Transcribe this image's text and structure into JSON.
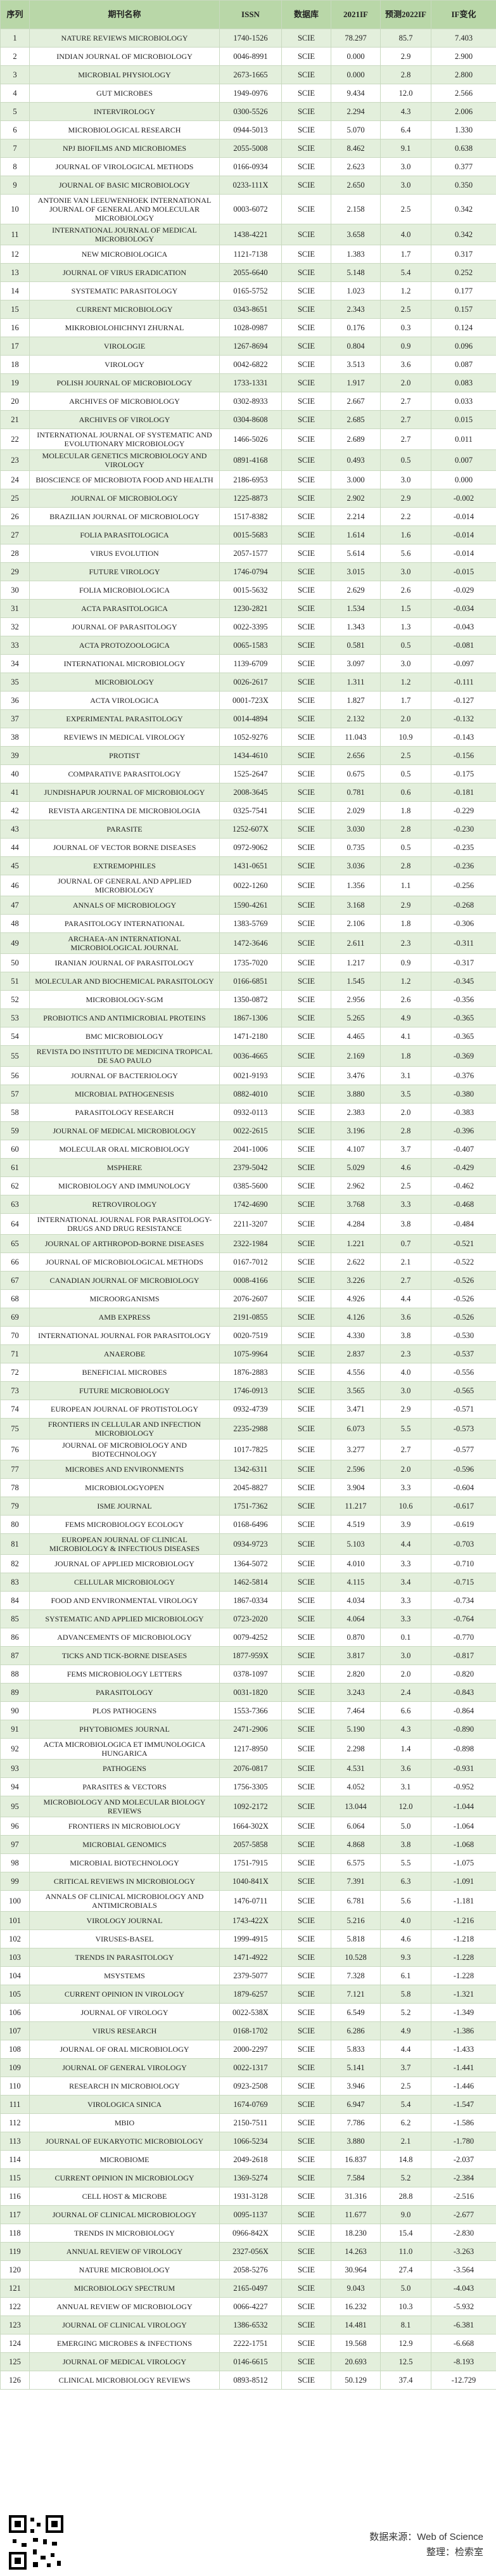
{
  "table": {
    "header": [
      "序列",
      "期刊名称",
      "ISSN",
      "数据库",
      "2021IF",
      "预测2022IF",
      "IF变化"
    ],
    "rows": [
      [
        "1",
        "NATURE REVIEWS MICROBIOLOGY",
        "1740-1526",
        "SCIE",
        "78.297",
        "85.7",
        "7.403"
      ],
      [
        "2",
        "INDIAN JOURNAL OF MICROBIOLOGY",
        "0046-8991",
        "SCIE",
        "0.000",
        "2.9",
        "2.900"
      ],
      [
        "3",
        "MICROBIAL PHYSIOLOGY",
        "2673-1665",
        "SCIE",
        "0.000",
        "2.8",
        "2.800"
      ],
      [
        "4",
        "GUT MICROBES",
        "1949-0976",
        "SCIE",
        "9.434",
        "12.0",
        "2.566"
      ],
      [
        "5",
        "INTERVIROLOGY",
        "0300-5526",
        "SCIE",
        "2.294",
        "4.3",
        "2.006"
      ],
      [
        "6",
        "MICROBIOLOGICAL RESEARCH",
        "0944-5013",
        "SCIE",
        "5.070",
        "6.4",
        "1.330"
      ],
      [
        "7",
        "NPJ BIOFILMS AND MICROBIOMES",
        "2055-5008",
        "SCIE",
        "8.462",
        "9.1",
        "0.638"
      ],
      [
        "8",
        "JOURNAL OF VIROLOGICAL METHODS",
        "0166-0934",
        "SCIE",
        "2.623",
        "3.0",
        "0.377"
      ],
      [
        "9",
        "JOURNAL OF BASIC MICROBIOLOGY",
        "0233-111X",
        "SCIE",
        "2.650",
        "3.0",
        "0.350"
      ],
      [
        "10",
        "ANTONIE VAN LEEUWENHOEK INTERNATIONAL JOURNAL OF GENERAL AND MOLECULAR MICROBIOLOGY",
        "0003-6072",
        "SCIE",
        "2.158",
        "2.5",
        "0.342"
      ],
      [
        "11",
        "INTERNATIONAL JOURNAL OF MEDICAL MICROBIOLOGY",
        "1438-4221",
        "SCIE",
        "3.658",
        "4.0",
        "0.342"
      ],
      [
        "12",
        "NEW MICROBIOLOGICA",
        "1121-7138",
        "SCIE",
        "1.383",
        "1.7",
        "0.317"
      ],
      [
        "13",
        "JOURNAL OF VIRUS ERADICATION",
        "2055-6640",
        "SCIE",
        "5.148",
        "5.4",
        "0.252"
      ],
      [
        "14",
        "SYSTEMATIC PARASITOLOGY",
        "0165-5752",
        "SCIE",
        "1.023",
        "1.2",
        "0.177"
      ],
      [
        "15",
        "CURRENT MICROBIOLOGY",
        "0343-8651",
        "SCIE",
        "2.343",
        "2.5",
        "0.157"
      ],
      [
        "16",
        "MIKROBIOLOHICHNYI ZHURNAL",
        "1028-0987",
        "SCIE",
        "0.176",
        "0.3",
        "0.124"
      ],
      [
        "17",
        "VIROLOGIE",
        "1267-8694",
        "SCIE",
        "0.804",
        "0.9",
        "0.096"
      ],
      [
        "18",
        "VIROLOGY",
        "0042-6822",
        "SCIE",
        "3.513",
        "3.6",
        "0.087"
      ],
      [
        "19",
        "POLISH JOURNAL OF MICROBIOLOGY",
        "1733-1331",
        "SCIE",
        "1.917",
        "2.0",
        "0.083"
      ],
      [
        "20",
        "ARCHIVES OF MICROBIOLOGY",
        "0302-8933",
        "SCIE",
        "2.667",
        "2.7",
        "0.033"
      ],
      [
        "21",
        "ARCHIVES OF VIROLOGY",
        "0304-8608",
        "SCIE",
        "2.685",
        "2.7",
        "0.015"
      ],
      [
        "22",
        "INTERNATIONAL JOURNAL OF SYSTEMATIC AND EVOLUTIONARY MICROBIOLOGY",
        "1466-5026",
        "SCIE",
        "2.689",
        "2.7",
        "0.011"
      ],
      [
        "23",
        "MOLECULAR GENETICS MICROBIOLOGY AND VIROLOGY",
        "0891-4168",
        "SCIE",
        "0.493",
        "0.5",
        "0.007"
      ],
      [
        "24",
        "BIOSCIENCE OF MICROBIOTA FOOD AND HEALTH",
        "2186-6953",
        "SCIE",
        "3.000",
        "3.0",
        "0.000"
      ],
      [
        "25",
        "JOURNAL OF MICROBIOLOGY",
        "1225-8873",
        "SCIE",
        "2.902",
        "2.9",
        "-0.002"
      ],
      [
        "26",
        "BRAZILIAN JOURNAL OF MICROBIOLOGY",
        "1517-8382",
        "SCIE",
        "2.214",
        "2.2",
        "-0.014"
      ],
      [
        "27",
        "FOLIA PARASITOLOGICA",
        "0015-5683",
        "SCIE",
        "1.614",
        "1.6",
        "-0.014"
      ],
      [
        "28",
        "VIRUS EVOLUTION",
        "2057-1577",
        "SCIE",
        "5.614",
        "5.6",
        "-0.014"
      ],
      [
        "29",
        "FUTURE VIROLOGY",
        "1746-0794",
        "SCIE",
        "3.015",
        "3.0",
        "-0.015"
      ],
      [
        "30",
        "FOLIA MICROBIOLOGICA",
        "0015-5632",
        "SCIE",
        "2.629",
        "2.6",
        "-0.029"
      ],
      [
        "31",
        "ACTA PARASITOLOGICA",
        "1230-2821",
        "SCIE",
        "1.534",
        "1.5",
        "-0.034"
      ],
      [
        "32",
        "JOURNAL OF PARASITOLOGY",
        "0022-3395",
        "SCIE",
        "1.343",
        "1.3",
        "-0.043"
      ],
      [
        "33",
        "ACTA PROTOZOOLOGICA",
        "0065-1583",
        "SCIE",
        "0.581",
        "0.5",
        "-0.081"
      ],
      [
        "34",
        "INTERNATIONAL MICROBIOLOGY",
        "1139-6709",
        "SCIE",
        "3.097",
        "3.0",
        "-0.097"
      ],
      [
        "35",
        "MICROBIOLOGY",
        "0026-2617",
        "SCIE",
        "1.311",
        "1.2",
        "-0.111"
      ],
      [
        "36",
        "ACTA VIROLOGICA",
        "0001-723X",
        "SCIE",
        "1.827",
        "1.7",
        "-0.127"
      ],
      [
        "37",
        "EXPERIMENTAL PARASITOLOGY",
        "0014-4894",
        "SCIE",
        "2.132",
        "2.0",
        "-0.132"
      ],
      [
        "38",
        "REVIEWS IN MEDICAL VIROLOGY",
        "1052-9276",
        "SCIE",
        "11.043",
        "10.9",
        "-0.143"
      ],
      [
        "39",
        "PROTIST",
        "1434-4610",
        "SCIE",
        "2.656",
        "2.5",
        "-0.156"
      ],
      [
        "40",
        "COMPARATIVE PARASITOLOGY",
        "1525-2647",
        "SCIE",
        "0.675",
        "0.5",
        "-0.175"
      ],
      [
        "41",
        "JUNDISHAPUR JOURNAL OF MICROBIOLOGY",
        "2008-3645",
        "SCIE",
        "0.781",
        "0.6",
        "-0.181"
      ],
      [
        "42",
        "REVISTA ARGENTINA DE MICROBIOLOGIA",
        "0325-7541",
        "SCIE",
        "2.029",
        "1.8",
        "-0.229"
      ],
      [
        "43",
        "PARASITE",
        "1252-607X",
        "SCIE",
        "3.030",
        "2.8",
        "-0.230"
      ],
      [
        "44",
        "JOURNAL OF VECTOR BORNE DISEASES",
        "0972-9062",
        "SCIE",
        "0.735",
        "0.5",
        "-0.235"
      ],
      [
        "45",
        "EXTREMOPHILES",
        "1431-0651",
        "SCIE",
        "3.036",
        "2.8",
        "-0.236"
      ],
      [
        "46",
        "JOURNAL OF GENERAL AND APPLIED MICROBIOLOGY",
        "0022-1260",
        "SCIE",
        "1.356",
        "1.1",
        "-0.256"
      ],
      [
        "47",
        "ANNALS OF MICROBIOLOGY",
        "1590-4261",
        "SCIE",
        "3.168",
        "2.9",
        "-0.268"
      ],
      [
        "48",
        "PARASITOLOGY INTERNATIONAL",
        "1383-5769",
        "SCIE",
        "2.106",
        "1.8",
        "-0.306"
      ],
      [
        "49",
        "ARCHAEA-AN INTERNATIONAL MICROBIOLOGICAL JOURNAL",
        "1472-3646",
        "SCIE",
        "2.611",
        "2.3",
        "-0.311"
      ],
      [
        "50",
        "IRANIAN JOURNAL OF PARASITOLOGY",
        "1735-7020",
        "SCIE",
        "1.217",
        "0.9",
        "-0.317"
      ],
      [
        "51",
        "MOLECULAR AND BIOCHEMICAL PARASITOLOGY",
        "0166-6851",
        "SCIE",
        "1.545",
        "1.2",
        "-0.345"
      ],
      [
        "52",
        "MICROBIOLOGY-SGM",
        "1350-0872",
        "SCIE",
        "2.956",
        "2.6",
        "-0.356"
      ],
      [
        "53",
        "PROBIOTICS AND ANTIMICROBIAL PROTEINS",
        "1867-1306",
        "SCIE",
        "5.265",
        "4.9",
        "-0.365"
      ],
      [
        "54",
        "BMC MICROBIOLOGY",
        "1471-2180",
        "SCIE",
        "4.465",
        "4.1",
        "-0.365"
      ],
      [
        "55",
        "REVISTA DO INSTITUTO DE MEDICINA TROPICAL DE SAO PAULO",
        "0036-4665",
        "SCIE",
        "2.169",
        "1.8",
        "-0.369"
      ],
      [
        "56",
        "JOURNAL OF BACTERIOLOGY",
        "0021-9193",
        "SCIE",
        "3.476",
        "3.1",
        "-0.376"
      ],
      [
        "57",
        "MICROBIAL PATHOGENESIS",
        "0882-4010",
        "SCIE",
        "3.880",
        "3.5",
        "-0.380"
      ],
      [
        "58",
        "PARASITOLOGY RESEARCH",
        "0932-0113",
        "SCIE",
        "2.383",
        "2.0",
        "-0.383"
      ],
      [
        "59",
        "JOURNAL OF MEDICAL MICROBIOLOGY",
        "0022-2615",
        "SCIE",
        "3.196",
        "2.8",
        "-0.396"
      ],
      [
        "60",
        "MOLECULAR ORAL MICROBIOLOGY",
        "2041-1006",
        "SCIE",
        "4.107",
        "3.7",
        "-0.407"
      ],
      [
        "61",
        "MSPHERE",
        "2379-5042",
        "SCIE",
        "5.029",
        "4.6",
        "-0.429"
      ],
      [
        "62",
        "MICROBIOLOGY AND IMMUNOLOGY",
        "0385-5600",
        "SCIE",
        "2.962",
        "2.5",
        "-0.462"
      ],
      [
        "63",
        "RETROVIROLOGY",
        "1742-4690",
        "SCIE",
        "3.768",
        "3.3",
        "-0.468"
      ],
      [
        "64",
        "INTERNATIONAL JOURNAL FOR PARASITOLOGY-DRUGS AND DRUG RESISTANCE",
        "2211-3207",
        "SCIE",
        "4.284",
        "3.8",
        "-0.484"
      ],
      [
        "65",
        "JOURNAL OF ARTHROPOD-BORNE DISEASES",
        "2322-1984",
        "SCIE",
        "1.221",
        "0.7",
        "-0.521"
      ],
      [
        "66",
        "JOURNAL OF MICROBIOLOGICAL METHODS",
        "0167-7012",
        "SCIE",
        "2.622",
        "2.1",
        "-0.522"
      ],
      [
        "67",
        "CANADIAN JOURNAL OF MICROBIOLOGY",
        "0008-4166",
        "SCIE",
        "3.226",
        "2.7",
        "-0.526"
      ],
      [
        "68",
        "MICROORGANISMS",
        "2076-2607",
        "SCIE",
        "4.926",
        "4.4",
        "-0.526"
      ],
      [
        "69",
        "AMB EXPRESS",
        "2191-0855",
        "SCIE",
        "4.126",
        "3.6",
        "-0.526"
      ],
      [
        "70",
        "INTERNATIONAL JOURNAL FOR PARASITOLOGY",
        "0020-7519",
        "SCIE",
        "4.330",
        "3.8",
        "-0.530"
      ],
      [
        "71",
        "ANAEROBE",
        "1075-9964",
        "SCIE",
        "2.837",
        "2.3",
        "-0.537"
      ],
      [
        "72",
        "BENEFICIAL MICROBES",
        "1876-2883",
        "SCIE",
        "4.556",
        "4.0",
        "-0.556"
      ],
      [
        "73",
        "FUTURE MICROBIOLOGY",
        "1746-0913",
        "SCIE",
        "3.565",
        "3.0",
        "-0.565"
      ],
      [
        "74",
        "EUROPEAN JOURNAL OF PROTISTOLOGY",
        "0932-4739",
        "SCIE",
        "3.471",
        "2.9",
        "-0.571"
      ],
      [
        "75",
        "FRONTIERS IN CELLULAR AND INFECTION MICROBIOLOGY",
        "2235-2988",
        "SCIE",
        "6.073",
        "5.5",
        "-0.573"
      ],
      [
        "76",
        "JOURNAL OF MICROBIOLOGY AND BIOTECHNOLOGY",
        "1017-7825",
        "SCIE",
        "3.277",
        "2.7",
        "-0.577"
      ],
      [
        "77",
        "MICROBES AND ENVIRONMENTS",
        "1342-6311",
        "SCIE",
        "2.596",
        "2.0",
        "-0.596"
      ],
      [
        "78",
        "MICROBIOLOGYOPEN",
        "2045-8827",
        "SCIE",
        "3.904",
        "3.3",
        "-0.604"
      ],
      [
        "79",
        "ISME JOURNAL",
        "1751-7362",
        "SCIE",
        "11.217",
        "10.6",
        "-0.617"
      ],
      [
        "80",
        "FEMS MICROBIOLOGY ECOLOGY",
        "0168-6496",
        "SCIE",
        "4.519",
        "3.9",
        "-0.619"
      ],
      [
        "81",
        "EUROPEAN JOURNAL OF CLINICAL MICROBIOLOGY & INFECTIOUS DISEASES",
        "0934-9723",
        "SCIE",
        "5.103",
        "4.4",
        "-0.703"
      ],
      [
        "82",
        "JOURNAL OF APPLIED MICROBIOLOGY",
        "1364-5072",
        "SCIE",
        "4.010",
        "3.3",
        "-0.710"
      ],
      [
        "83",
        "CELLULAR MICROBIOLOGY",
        "1462-5814",
        "SCIE",
        "4.115",
        "3.4",
        "-0.715"
      ],
      [
        "84",
        "FOOD AND ENVIRONMENTAL VIROLOGY",
        "1867-0334",
        "SCIE",
        "4.034",
        "3.3",
        "-0.734"
      ],
      [
        "85",
        "SYSTEMATIC AND APPLIED MICROBIOLOGY",
        "0723-2020",
        "SCIE",
        "4.064",
        "3.3",
        "-0.764"
      ],
      [
        "86",
        "ADVANCEMENTS OF MICROBIOLOGY",
        "0079-4252",
        "SCIE",
        "0.870",
        "0.1",
        "-0.770"
      ],
      [
        "87",
        "TICKS AND TICK-BORNE DISEASES",
        "1877-959X",
        "SCIE",
        "3.817",
        "3.0",
        "-0.817"
      ],
      [
        "88",
        "FEMS MICROBIOLOGY LETTERS",
        "0378-1097",
        "SCIE",
        "2.820",
        "2.0",
        "-0.820"
      ],
      [
        "89",
        "PARASITOLOGY",
        "0031-1820",
        "SCIE",
        "3.243",
        "2.4",
        "-0.843"
      ],
      [
        "90",
        "PLOS PATHOGENS",
        "1553-7366",
        "SCIE",
        "7.464",
        "6.6",
        "-0.864"
      ],
      [
        "91",
        "PHYTOBIOMES JOURNAL",
        "2471-2906",
        "SCIE",
        "5.190",
        "4.3",
        "-0.890"
      ],
      [
        "92",
        "ACTA MICROBIOLOGICA ET IMMUNOLOGICA HUNGARICA",
        "1217-8950",
        "SCIE",
        "2.298",
        "1.4",
        "-0.898"
      ],
      [
        "93",
        "PATHOGENS",
        "2076-0817",
        "SCIE",
        "4.531",
        "3.6",
        "-0.931"
      ],
      [
        "94",
        "PARASITES & VECTORS",
        "1756-3305",
        "SCIE",
        "4.052",
        "3.1",
        "-0.952"
      ],
      [
        "95",
        "MICROBIOLOGY AND MOLECULAR BIOLOGY REVIEWS",
        "1092-2172",
        "SCIE",
        "13.044",
        "12.0",
        "-1.044"
      ],
      [
        "96",
        "FRONTIERS IN MICROBIOLOGY",
        "1664-302X",
        "SCIE",
        "6.064",
        "5.0",
        "-1.064"
      ],
      [
        "97",
        "MICROBIAL GENOMICS",
        "2057-5858",
        "SCIE",
        "4.868",
        "3.8",
        "-1.068"
      ],
      [
        "98",
        "MICROBIAL BIOTECHNOLOGY",
        "1751-7915",
        "SCIE",
        "6.575",
        "5.5",
        "-1.075"
      ],
      [
        "99",
        "CRITICAL REVIEWS IN MICROBIOLOGY",
        "1040-841X",
        "SCIE",
        "7.391",
        "6.3",
        "-1.091"
      ],
      [
        "100",
        "ANNALS OF CLINICAL MICROBIOLOGY AND ANTIMICROBIALS",
        "1476-0711",
        "SCIE",
        "6.781",
        "5.6",
        "-1.181"
      ],
      [
        "101",
        "VIROLOGY JOURNAL",
        "1743-422X",
        "SCIE",
        "5.216",
        "4.0",
        "-1.216"
      ],
      [
        "102",
        "VIRUSES-BASEL",
        "1999-4915",
        "SCIE",
        "5.818",
        "4.6",
        "-1.218"
      ],
      [
        "103",
        "TRENDS IN PARASITOLOGY",
        "1471-4922",
        "SCIE",
        "10.528",
        "9.3",
        "-1.228"
      ],
      [
        "104",
        "MSYSTEMS",
        "2379-5077",
        "SCIE",
        "7.328",
        "6.1",
        "-1.228"
      ],
      [
        "105",
        "CURRENT OPINION IN VIROLOGY",
        "1879-6257",
        "SCIE",
        "7.121",
        "5.8",
        "-1.321"
      ],
      [
        "106",
        "JOURNAL OF VIROLOGY",
        "0022-538X",
        "SCIE",
        "6.549",
        "5.2",
        "-1.349"
      ],
      [
        "107",
        "VIRUS RESEARCH",
        "0168-1702",
        "SCIE",
        "6.286",
        "4.9",
        "-1.386"
      ],
      [
        "108",
        "JOURNAL OF ORAL MICROBIOLOGY",
        "2000-2297",
        "SCIE",
        "5.833",
        "4.4",
        "-1.433"
      ],
      [
        "109",
        "JOURNAL OF GENERAL VIROLOGY",
        "0022-1317",
        "SCIE",
        "5.141",
        "3.7",
        "-1.441"
      ],
      [
        "110",
        "RESEARCH IN MICROBIOLOGY",
        "0923-2508",
        "SCIE",
        "3.946",
        "2.5",
        "-1.446"
      ],
      [
        "111",
        "VIROLOGICA SINICA",
        "1674-0769",
        "SCIE",
        "6.947",
        "5.4",
        "-1.547"
      ],
      [
        "112",
        "MBIO",
        "2150-7511",
        "SCIE",
        "7.786",
        "6.2",
        "-1.586"
      ],
      [
        "113",
        "JOURNAL OF EUKARYOTIC MICROBIOLOGY",
        "1066-5234",
        "SCIE",
        "3.880",
        "2.1",
        "-1.780"
      ],
      [
        "114",
        "MICROBIOME",
        "2049-2618",
        "SCIE",
        "16.837",
        "14.8",
        "-2.037"
      ],
      [
        "115",
        "CURRENT OPINION IN MICROBIOLOGY",
        "1369-5274",
        "SCIE",
        "7.584",
        "5.2",
        "-2.384"
      ],
      [
        "116",
        "CELL HOST & MICROBE",
        "1931-3128",
        "SCIE",
        "31.316",
        "28.8",
        "-2.516"
      ],
      [
        "117",
        "JOURNAL OF CLINICAL MICROBIOLOGY",
        "0095-1137",
        "SCIE",
        "11.677",
        "9.0",
        "-2.677"
      ],
      [
        "118",
        "TRENDS IN MICROBIOLOGY",
        "0966-842X",
        "SCIE",
        "18.230",
        "15.4",
        "-2.830"
      ],
      [
        "119",
        "ANNUAL REVIEW OF VIROLOGY",
        "2327-056X",
        "SCIE",
        "14.263",
        "11.0",
        "-3.263"
      ],
      [
        "120",
        "NATURE MICROBIOLOGY",
        "2058-5276",
        "SCIE",
        "30.964",
        "27.4",
        "-3.564"
      ],
      [
        "121",
        "MICROBIOLOGY SPECTRUM",
        "2165-0497",
        "SCIE",
        "9.043",
        "5.0",
        "-4.043"
      ],
      [
        "122",
        "ANNUAL REVIEW OF MICROBIOLOGY",
        "0066-4227",
        "SCIE",
        "16.232",
        "10.3",
        "-5.932"
      ],
      [
        "123",
        "JOURNAL OF CLINICAL VIROLOGY",
        "1386-6532",
        "SCIE",
        "14.481",
        "8.1",
        "-6.381"
      ],
      [
        "124",
        "EMERGING MICROBES & INFECTIONS",
        "2222-1751",
        "SCIE",
        "19.568",
        "12.9",
        "-6.668"
      ],
      [
        "125",
        "JOURNAL OF MEDICAL VIROLOGY",
        "0146-6615",
        "SCIE",
        "20.693",
        "12.5",
        "-8.193"
      ],
      [
        "126",
        "CLINICAL MICROBIOLOGY REVIEWS",
        "0893-8512",
        "SCIE",
        "50.129",
        "37.4",
        "-12.729"
      ]
    ]
  },
  "footer": {
    "source": "数据来源：Web of Science",
    "editor": "整理：检索室"
  }
}
